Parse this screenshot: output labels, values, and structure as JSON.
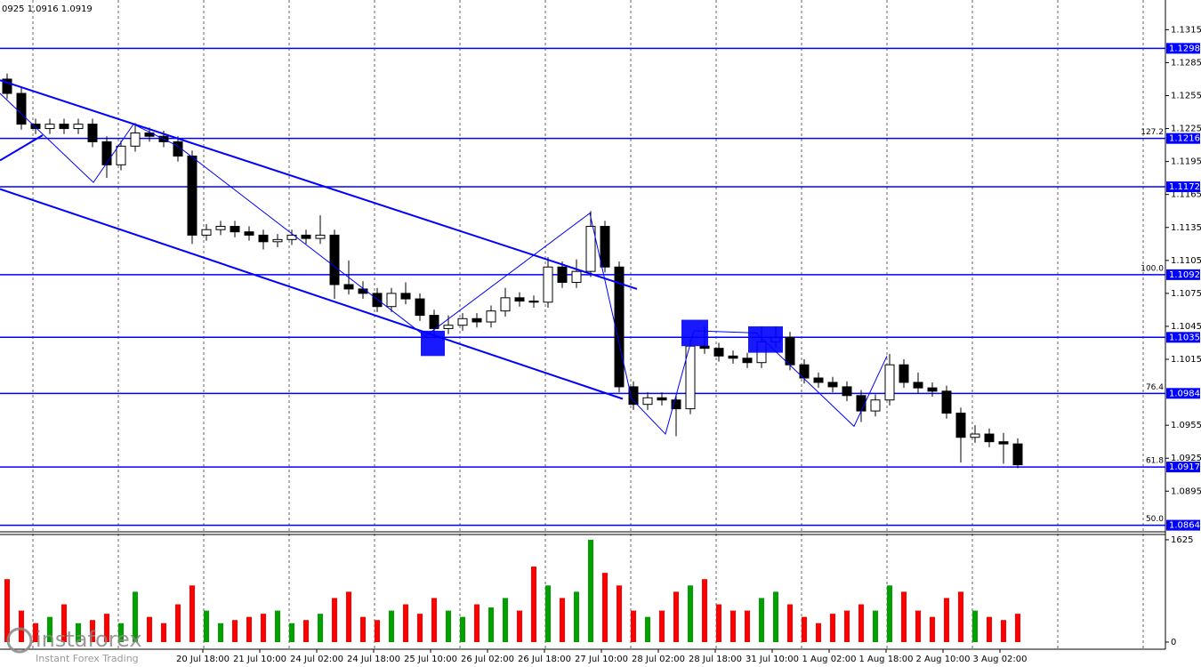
{
  "header_text": "0925 1.0916 1.0919",
  "watermark": {
    "brand": "instaforex",
    "slogan": "Instant Forex Trading"
  },
  "chart_data": {
    "type": "candlestick",
    "x": [
      2,
      6,
      10,
      14,
      18,
      22,
      26,
      30,
      34,
      38,
      42,
      46,
      50,
      54,
      58,
      62,
      66,
      70,
      74,
      78,
      82,
      86,
      90,
      94,
      98,
      102,
      106,
      110,
      114,
      118,
      122,
      126,
      130,
      134,
      138,
      142,
      146,
      150,
      154,
      158,
      162,
      166,
      170,
      174,
      178,
      182,
      186,
      190,
      194,
      198,
      202,
      206,
      210,
      214,
      218,
      222,
      226,
      230,
      234,
      238,
      242,
      246,
      250,
      254,
      258,
      262,
      266,
      270,
      274,
      278,
      282,
      286
    ],
    "open": [
      1.127,
      1.1257,
      1.1229,
      1.1225,
      1.1229,
      1.1225,
      1.1229,
      1.1213,
      1.1192,
      1.1209,
      1.1221,
      1.1218,
      1.1213,
      1.12,
      1.1128,
      1.1133,
      1.1136,
      1.1131,
      1.1128,
      1.1122,
      1.1124,
      1.1128,
      1.1125,
      1.1128,
      1.1083,
      1.1079,
      1.1075,
      1.1063,
      1.1075,
      1.107,
      1.1055,
      1.1043,
      1.1046,
      1.1052,
      1.1049,
      1.1059,
      1.1071,
      1.1068,
      1.1067,
      1.1099,
      1.1085,
      1.1095,
      1.1136,
      1.1099,
      1.099,
      1.0974,
      1.098,
      1.0978,
      1.097,
      1.1027,
      1.1025,
      1.1018,
      1.1016,
      1.1012,
      1.1031,
      1.1035,
      1.101,
      1.0998,
      1.0994,
      1.099,
      1.0982,
      1.0968,
      1.0978,
      1.101,
      1.0994,
      1.0989,
      1.0986,
      1.0966,
      1.0944,
      1.0947,
      1.094,
      1.0938
    ],
    "high": [
      1.1275,
      1.1262,
      1.1234,
      1.1234,
      1.1234,
      1.1234,
      1.1234,
      1.1218,
      1.1214,
      1.123,
      1.1226,
      1.1223,
      1.1218,
      1.1205,
      1.1138,
      1.1141,
      1.1141,
      1.1136,
      1.1133,
      1.1129,
      1.1133,
      1.1133,
      1.1146,
      1.1133,
      1.1105,
      1.1086,
      1.108,
      1.108,
      1.1085,
      1.1075,
      1.106,
      1.1055,
      1.1057,
      1.1057,
      1.1064,
      1.108,
      1.1076,
      1.1073,
      1.1108,
      1.1104,
      1.1106,
      1.115,
      1.1141,
      1.1104,
      1.0995,
      1.0985,
      1.0985,
      1.0983,
      1.1032,
      1.1045,
      1.103,
      1.1023,
      1.1021,
      1.1045,
      1.1045,
      1.104,
      1.1015,
      1.1003,
      1.0999,
      1.0995,
      1.0987,
      1.0983,
      1.102,
      1.1015,
      1.1003,
      1.0994,
      1.0991,
      1.0971,
      1.0955,
      1.0952,
      1.0948,
      1.0943
    ],
    "low": [
      1.1252,
      1.1224,
      1.122,
      1.122,
      1.122,
      1.122,
      1.1208,
      1.118,
      1.1187,
      1.1204,
      1.1213,
      1.1208,
      1.1195,
      1.112,
      1.1123,
      1.1128,
      1.1126,
      1.1123,
      1.1115,
      1.1117,
      1.1119,
      1.112,
      1.112,
      1.107,
      1.1074,
      1.107,
      1.1058,
      1.1058,
      1.1065,
      1.105,
      1.1035,
      1.1038,
      1.1041,
      1.1044,
      1.1044,
      1.1054,
      1.1063,
      1.1062,
      1.1062,
      1.108,
      1.108,
      1.109,
      1.1094,
      1.0985,
      1.0969,
      1.0969,
      1.0973,
      1.0945,
      1.0965,
      1.102,
      1.1013,
      1.1011,
      1.1007,
      1.1007,
      1.1026,
      1.1005,
      1.0993,
      1.0989,
      1.0985,
      1.0977,
      1.0958,
      1.0963,
      1.0973,
      1.0989,
      1.0984,
      1.0981,
      1.0961,
      1.0921,
      1.0939,
      1.0935,
      1.092,
      1.0916
    ],
    "close": [
      1.1257,
      1.1229,
      1.1225,
      1.1229,
      1.1225,
      1.1229,
      1.1213,
      1.1192,
      1.1209,
      1.1221,
      1.1218,
      1.1213,
      1.12,
      1.1128,
      1.1133,
      1.1136,
      1.1131,
      1.1128,
      1.1122,
      1.1124,
      1.1128,
      1.1125,
      1.1128,
      1.1083,
      1.1079,
      1.1075,
      1.1063,
      1.1075,
      1.107,
      1.1055,
      1.1043,
      1.1046,
      1.1052,
      1.1049,
      1.1059,
      1.1071,
      1.1068,
      1.1067,
      1.1099,
      1.1085,
      1.1095,
      1.1136,
      1.1099,
      1.099,
      1.0974,
      1.098,
      1.0978,
      1.097,
      1.1027,
      1.1025,
      1.1018,
      1.1016,
      1.1012,
      1.1031,
      1.1035,
      1.101,
      1.0998,
      1.0994,
      1.099,
      1.0982,
      1.0968,
      1.0978,
      1.101,
      1.0994,
      1.0989,
      1.0986,
      1.0966,
      1.0944,
      1.0947,
      1.094,
      1.0938,
      1.0919
    ],
    "up_color": "#ffffff",
    "down_color": "#000000",
    "xlim": [
      0,
      327.5
    ],
    "xticks": [
      {
        "value": 57,
        "label": "20 Jul 18:00"
      },
      {
        "value": 73,
        "label": "21 Jul 10:00"
      },
      {
        "value": 89,
        "label": "24 Jul 02:00"
      },
      {
        "value": 105,
        "label": "24 Jul 18:00"
      },
      {
        "value": 121,
        "label": "25 Jul 10:00"
      },
      {
        "value": 137,
        "label": "26 Jul 02:00"
      },
      {
        "value": 153,
        "label": "26 Jul 18:00"
      },
      {
        "value": 169,
        "label": "27 Jul 10:00"
      },
      {
        "value": 185,
        "label": "28 Jul 02:00"
      },
      {
        "value": 201,
        "label": "28 Jul 18:00"
      },
      {
        "value": 217,
        "label": "31 Jul 10:00"
      },
      {
        "value": 233,
        "label": "1 Aug 02:00"
      },
      {
        "value": 249,
        "label": "1 Aug 18:00"
      },
      {
        "value": 265,
        "label": "2 Aug 10:00"
      },
      {
        "value": 281,
        "label": "3 Aug 02:00"
      }
    ],
    "ylim": [
      1.0858,
      1.1342
    ],
    "yticks": [
      1.1315,
      1.1285,
      1.1255,
      1.1225,
      1.1195,
      1.1165,
      1.1135,
      1.1105,
      1.1075,
      1.1045,
      1.1015,
      1.0955,
      1.0925,
      1.0895
    ],
    "level_color": "#0000ff",
    "levels": [
      {
        "value": 1.1298
      },
      {
        "value": 1.1216,
        "label": "127.2"
      },
      {
        "value": 1.1172
      },
      {
        "value": 1.1092,
        "label": "100.0"
      },
      {
        "value": 1.1035
      },
      {
        "value": 1.0984,
        "label": "76.4"
      },
      {
        "value": 1.0917,
        "label": "61.8"
      },
      {
        "value": 1.0864,
        "label": "50.0"
      }
    ],
    "trendlines": [
      {
        "weight": "thick",
        "x": [
          0,
          179
        ],
        "y": [
          1.1269,
          1.1079
        ]
      },
      {
        "weight": "thick",
        "x": [
          0,
          175
        ],
        "y": [
          1.117,
          1.0979
        ]
      },
      {
        "weight": "thick",
        "x": [
          0,
          12
        ],
        "y": [
          1.1196,
          1.1219
        ]
      },
      {
        "weight": "thin",
        "x": [
          0,
          26.25,
          37.5,
          50,
          119.5,
          165.75,
          177.5,
          187,
          195,
          212.5,
          240,
          249.25
        ],
        "y": [
          1.1257,
          1.1176,
          1.1229,
          1.1209,
          1.1036,
          1.1148,
          1.0979,
          1.0947,
          1.1041,
          1.1039,
          1.0954,
          1.1018
        ]
      }
    ],
    "boxes": [
      {
        "x": [
          118.25,
          125
        ],
        "y": [
          1.1041,
          1.1018
        ]
      },
      {
        "x": [
          191.5,
          199
        ],
        "y": [
          1.1051,
          1.1027
        ]
      },
      {
        "x": [
          210.25,
          220
        ],
        "y": [
          1.1045,
          1.1021
        ]
      }
    ],
    "volume": {
      "values": [
        1000,
        500,
        300,
        400,
        600,
        300,
        350,
        450,
        300,
        800,
        400,
        300,
        600,
        900,
        500,
        300,
        350,
        400,
        450,
        500,
        300,
        350,
        450,
        700,
        800,
        400,
        350,
        500,
        600,
        450,
        700,
        500,
        400,
        600,
        550,
        700,
        500,
        1200,
        900,
        700,
        800,
        1625,
        1100,
        900,
        500,
        400,
        500,
        800,
        900,
        1000,
        600,
        500,
        500,
        700,
        800,
        600,
        400,
        300,
        450,
        500,
        600,
        500,
        900,
        800,
        500,
        400,
        700,
        800,
        500,
        400,
        350,
        450
      ],
      "ylim": [
        0,
        1709
      ],
      "yticks": [
        0,
        1625
      ],
      "up_color": "#00a000",
      "down_color": "#ff0000"
    }
  }
}
